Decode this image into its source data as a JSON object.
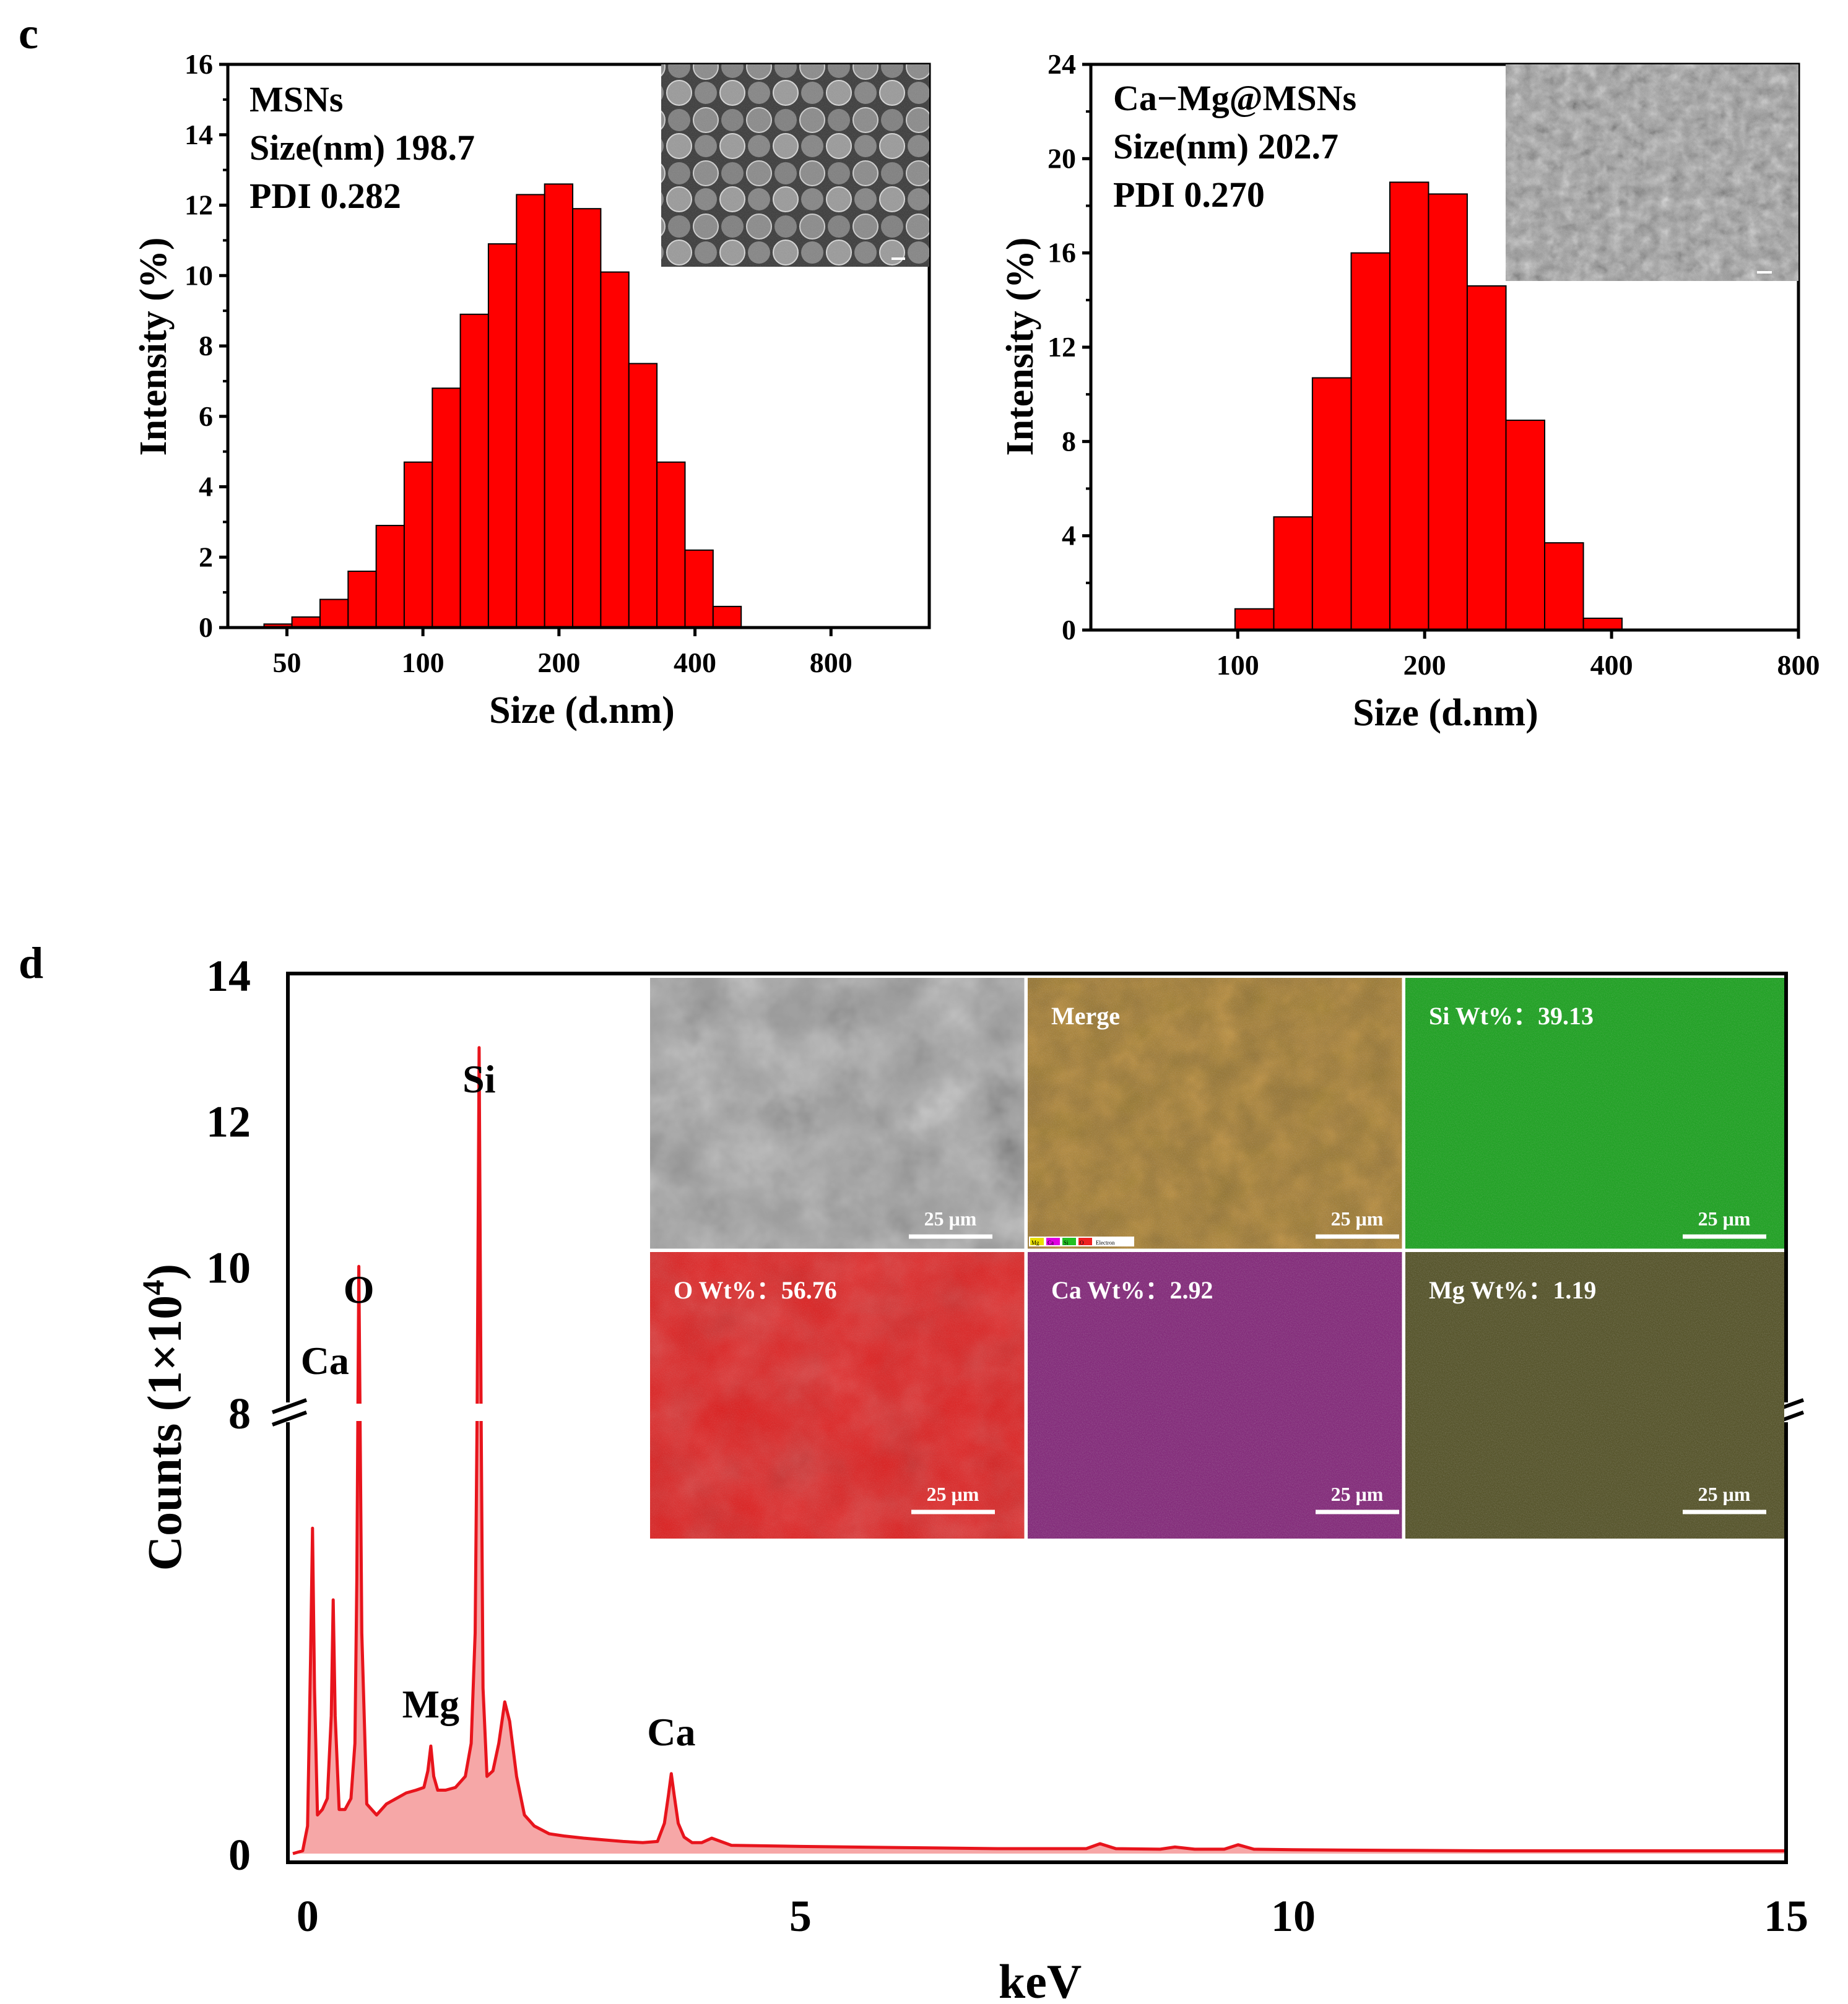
{
  "panel_c_label": "c",
  "panel_d_label": "d",
  "colors": {
    "bar": "#ff0000",
    "bar_edge": "#000000",
    "spectrum_line": "#e8141c",
    "spectrum_fill": "#f6a7a7"
  },
  "chart_data": [
    {
      "type": "bar",
      "title": "",
      "sample": "MSNs",
      "size_label": "Size(nm) 198.7",
      "pdi_label": "PDI 0.282",
      "xlabel": "Size (d.nm)",
      "ylabel": "Intensity (%)",
      "x_scale": "log",
      "xlim": [
        37,
        1320
      ],
      "ylim": [
        0,
        16
      ],
      "xticks": [
        50,
        100,
        200,
        400,
        800
      ],
      "xtick_labels": [
        "50",
        "100",
        "200",
        "400",
        "800"
      ],
      "yticks": [
        0,
        2,
        4,
        6,
        8,
        10,
        12,
        14,
        16
      ],
      "ytick_labels": [
        "0",
        "2",
        "4",
        "6",
        "8",
        "10",
        "12",
        "14",
        "16"
      ],
      "bin_edges": [
        44.5,
        51.3,
        59.2,
        68.3,
        78.8,
        90.9,
        104.9,
        121.0,
        139.6,
        161.1,
        185.9,
        214.5,
        247.5,
        285.6,
        329.5,
        380.2,
        438.7,
        506.2
      ],
      "values": [
        0.1,
        0.3,
        0.8,
        1.6,
        2.9,
        4.7,
        6.8,
        8.9,
        10.9,
        12.3,
        12.6,
        11.9,
        10.1,
        7.5,
        4.7,
        2.2,
        0.6
      ],
      "inset": "SEM image of MSNs"
    },
    {
      "type": "bar",
      "title": "",
      "sample": "Ca−Mg@MSNs",
      "size_label": "Size(nm) 202.7",
      "pdi_label": "PDI 0.270",
      "xlabel": "Size (d.nm)",
      "ylabel": "Intensity (%)",
      "x_scale": "log",
      "xlim": [
        58,
        800
      ],
      "ylim": [
        0,
        24
      ],
      "xticks": [
        100,
        200,
        400,
        800
      ],
      "xtick_labels": [
        "100",
        "200",
        "400",
        "800"
      ],
      "yticks": [
        0,
        4,
        8,
        12,
        16,
        20,
        24
      ],
      "ytick_labels": [
        "0",
        "4",
        "8",
        "12",
        "16",
        "20",
        "24"
      ],
      "bin_edges": [
        99.0,
        114.3,
        131.9,
        152.3,
        175.8,
        202.9,
        234.2,
        270.4,
        312.1,
        360.3,
        415.8
      ],
      "values": [
        0.9,
        4.8,
        10.7,
        16.0,
        19.0,
        18.5,
        14.6,
        8.9,
        3.7,
        0.5
      ],
      "inset": "SEM image of Ca−Mg@MSNs"
    },
    {
      "type": "line",
      "title": "",
      "xlabel": "keV",
      "ylabel": "Counts (1×10⁴)",
      "xlim": [
        -0.2,
        15
      ],
      "ylim": [
        0,
        14
      ],
      "y_axis_break": {
        "lower_display_max": 8,
        "note": "axis break at 8"
      },
      "xticks": [
        0,
        5,
        10,
        15
      ],
      "xtick_labels": [
        "0",
        "5",
        "10",
        "15"
      ],
      "ytick_labels": [
        "0",
        "8",
        "10",
        "12",
        "14"
      ],
      "peaks": [
        {
          "element": "Ca",
          "x": 0.05
        },
        {
          "element": "O",
          "x": 0.52
        },
        {
          "element": "Mg",
          "x": 1.25
        },
        {
          "element": "Si",
          "x": 1.74
        },
        {
          "element": "Ca",
          "x": 3.69
        }
      ],
      "series": [
        {
          "name": "EDS spectrum",
          "x": [
            -0.15,
            -0.05,
            0.0,
            0.03,
            0.05,
            0.07,
            0.1,
            0.15,
            0.2,
            0.24,
            0.26,
            0.28,
            0.32,
            0.38,
            0.44,
            0.48,
            0.5,
            0.52,
            0.55,
            0.6,
            0.65,
            0.7,
            0.8,
            0.9,
            1.0,
            1.1,
            1.18,
            1.22,
            1.25,
            1.28,
            1.32,
            1.4,
            1.5,
            1.6,
            1.66,
            1.7,
            1.72,
            1.74,
            1.76,
            1.78,
            1.82,
            1.88,
            1.94,
            2.0,
            2.05,
            2.12,
            2.2,
            2.3,
            2.45,
            2.6,
            2.8,
            3.0,
            3.2,
            3.4,
            3.55,
            3.62,
            3.66,
            3.69,
            3.72,
            3.76,
            3.82,
            3.9,
            4.0,
            4.1,
            4.3,
            5.0,
            6.0,
            7.0,
            7.9,
            8.04,
            8.2,
            8.65,
            8.8,
            9.0,
            9.3,
            9.44,
            9.6,
            10.0,
            11.0,
            12.0,
            13.0,
            14.0,
            15.0
          ],
          "y": [
            0.0,
            0.05,
            0.5,
            3.5,
            5.9,
            3.0,
            0.7,
            0.8,
            1.0,
            2.5,
            4.6,
            2.5,
            0.8,
            0.8,
            1.0,
            2.0,
            5.0,
            10.0,
            4.0,
            0.9,
            0.8,
            0.7,
            0.9,
            1.0,
            1.1,
            1.15,
            1.2,
            1.5,
            1.95,
            1.4,
            1.15,
            1.15,
            1.2,
            1.4,
            2.0,
            4.0,
            8.0,
            13.0,
            8.0,
            3.0,
            1.4,
            1.5,
            2.0,
            2.75,
            2.4,
            1.4,
            0.7,
            0.5,
            0.36,
            0.32,
            0.28,
            0.25,
            0.22,
            0.2,
            0.22,
            0.55,
            1.05,
            1.45,
            1.05,
            0.55,
            0.3,
            0.2,
            0.2,
            0.28,
            0.15,
            0.13,
            0.11,
            0.09,
            0.09,
            0.18,
            0.09,
            0.08,
            0.12,
            0.08,
            0.08,
            0.16,
            0.08,
            0.07,
            0.06,
            0.05,
            0.05,
            0.05,
            0.05
          ]
        }
      ],
      "inset_maps": [
        {
          "label": "",
          "type": "SEM"
        },
        {
          "label": "Merge",
          "type": "overlay",
          "legend": [
            "Mg",
            "Ca",
            "Si",
            "O",
            "Electron"
          ]
        },
        {
          "label": "Si Wt%：39.13",
          "color": "#16a21a"
        },
        {
          "label": "O Wt%：56.76",
          "color": "#e01010"
        },
        {
          "label": "Ca Wt%：2.92",
          "color": "#8a1c7c"
        },
        {
          "label": "Mg Wt%：1.19",
          "color": "#7a7222"
        }
      ],
      "scale_bar": "25 μm"
    }
  ]
}
